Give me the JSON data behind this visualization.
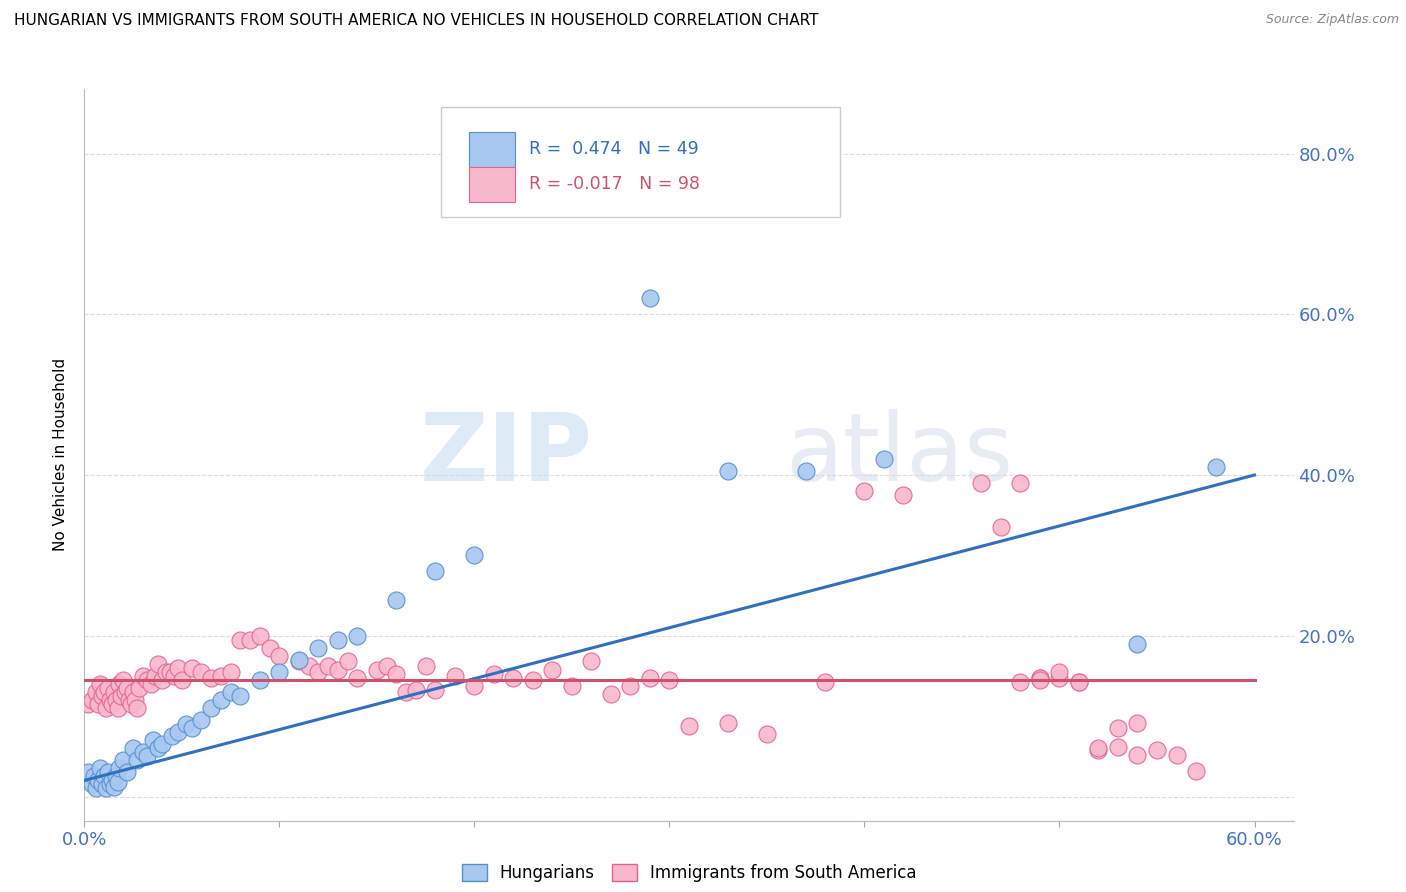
{
  "title": "HUNGARIAN VS IMMIGRANTS FROM SOUTH AMERICA NO VEHICLES IN HOUSEHOLD CORRELATION CHART",
  "source": "Source: ZipAtlas.com",
  "ylabel": "No Vehicles in Household",
  "xlim": [
    0.0,
    0.62
  ],
  "ylim": [
    -0.03,
    0.88
  ],
  "xticks": [
    0.0,
    0.1,
    0.2,
    0.3,
    0.4,
    0.5,
    0.6
  ],
  "xtick_labels": [
    "0.0%",
    "",
    "",
    "",
    "",
    "",
    "60.0%"
  ],
  "yticks": [
    0.0,
    0.2,
    0.4,
    0.6,
    0.8
  ],
  "ytick_labels_right": [
    "",
    "20.0%",
    "40.0%",
    "60.0%",
    "80.0%"
  ],
  "blue_color": "#A8C8F0",
  "pink_color": "#F8B8CC",
  "blue_edge_color": "#5090D0",
  "pink_edge_color": "#E86090",
  "blue_line_color": "#3070C0",
  "pink_line_color": "#D05070",
  "legend_label_blue": "Hungarians",
  "legend_label_pink": "Immigrants from South America",
  "watermark_zip": "ZIP",
  "watermark_atlas": "atlas",
  "blue_trend_x": [
    0.0,
    0.6
  ],
  "blue_trend_y": [
    0.02,
    0.4
  ],
  "pink_trend_x": [
    0.0,
    0.6
  ],
  "pink_trend_y": [
    0.145,
    0.145
  ],
  "blue_scatter_x": [
    0.002,
    0.004,
    0.005,
    0.006,
    0.007,
    0.008,
    0.009,
    0.01,
    0.011,
    0.012,
    0.013,
    0.014,
    0.015,
    0.016,
    0.017,
    0.018,
    0.02,
    0.022,
    0.025,
    0.027,
    0.03,
    0.032,
    0.035,
    0.038,
    0.04,
    0.045,
    0.048,
    0.052,
    0.055,
    0.06,
    0.065,
    0.07,
    0.075,
    0.08,
    0.09,
    0.1,
    0.11,
    0.12,
    0.13,
    0.14,
    0.16,
    0.18,
    0.2,
    0.29,
    0.33,
    0.37,
    0.41,
    0.54,
    0.58
  ],
  "blue_scatter_y": [
    0.03,
    0.015,
    0.025,
    0.01,
    0.02,
    0.035,
    0.015,
    0.025,
    0.01,
    0.03,
    0.015,
    0.02,
    0.012,
    0.025,
    0.018,
    0.035,
    0.045,
    0.03,
    0.06,
    0.045,
    0.055,
    0.05,
    0.07,
    0.06,
    0.065,
    0.075,
    0.08,
    0.09,
    0.085,
    0.095,
    0.11,
    0.12,
    0.13,
    0.125,
    0.145,
    0.155,
    0.17,
    0.185,
    0.195,
    0.2,
    0.245,
    0.28,
    0.3,
    0.62,
    0.405,
    0.405,
    0.42,
    0.19,
    0.41
  ],
  "pink_scatter_x": [
    0.002,
    0.004,
    0.006,
    0.007,
    0.008,
    0.009,
    0.01,
    0.011,
    0.012,
    0.013,
    0.014,
    0.015,
    0.016,
    0.017,
    0.018,
    0.019,
    0.02,
    0.021,
    0.022,
    0.023,
    0.024,
    0.025,
    0.026,
    0.027,
    0.028,
    0.03,
    0.032,
    0.034,
    0.036,
    0.038,
    0.04,
    0.042,
    0.044,
    0.046,
    0.048,
    0.05,
    0.055,
    0.06,
    0.065,
    0.07,
    0.075,
    0.08,
    0.085,
    0.09,
    0.095,
    0.1,
    0.11,
    0.115,
    0.12,
    0.125,
    0.13,
    0.135,
    0.14,
    0.15,
    0.155,
    0.16,
    0.165,
    0.17,
    0.175,
    0.18,
    0.19,
    0.2,
    0.21,
    0.22,
    0.23,
    0.24,
    0.25,
    0.26,
    0.27,
    0.28,
    0.29,
    0.3,
    0.31,
    0.33,
    0.35,
    0.38,
    0.4,
    0.42,
    0.46,
    0.47,
    0.48,
    0.49,
    0.5,
    0.51,
    0.52,
    0.53,
    0.54,
    0.48,
    0.49,
    0.5,
    0.51,
    0.52,
    0.53,
    0.54,
    0.55,
    0.57,
    0.49,
    0.56
  ],
  "pink_scatter_y": [
    0.115,
    0.12,
    0.13,
    0.115,
    0.14,
    0.125,
    0.13,
    0.11,
    0.135,
    0.12,
    0.115,
    0.13,
    0.12,
    0.11,
    0.14,
    0.125,
    0.145,
    0.13,
    0.135,
    0.12,
    0.115,
    0.13,
    0.12,
    0.11,
    0.135,
    0.15,
    0.145,
    0.14,
    0.15,
    0.165,
    0.145,
    0.155,
    0.155,
    0.15,
    0.16,
    0.145,
    0.16,
    0.155,
    0.148,
    0.15,
    0.155,
    0.195,
    0.195,
    0.2,
    0.185,
    0.175,
    0.168,
    0.162,
    0.155,
    0.162,
    0.158,
    0.168,
    0.148,
    0.158,
    0.162,
    0.152,
    0.13,
    0.132,
    0.162,
    0.132,
    0.15,
    0.138,
    0.152,
    0.148,
    0.145,
    0.158,
    0.138,
    0.168,
    0.128,
    0.138,
    0.148,
    0.145,
    0.088,
    0.092,
    0.078,
    0.142,
    0.38,
    0.375,
    0.39,
    0.335,
    0.142,
    0.148,
    0.148,
    0.142,
    0.058,
    0.062,
    0.052,
    0.39,
    0.148,
    0.155,
    0.142,
    0.06,
    0.085,
    0.092,
    0.058,
    0.032,
    0.145,
    0.052
  ],
  "grid_color": "#DEDEDE",
  "tick_color": "#4472C4",
  "title_fontsize": 11,
  "source_fontsize": 9
}
